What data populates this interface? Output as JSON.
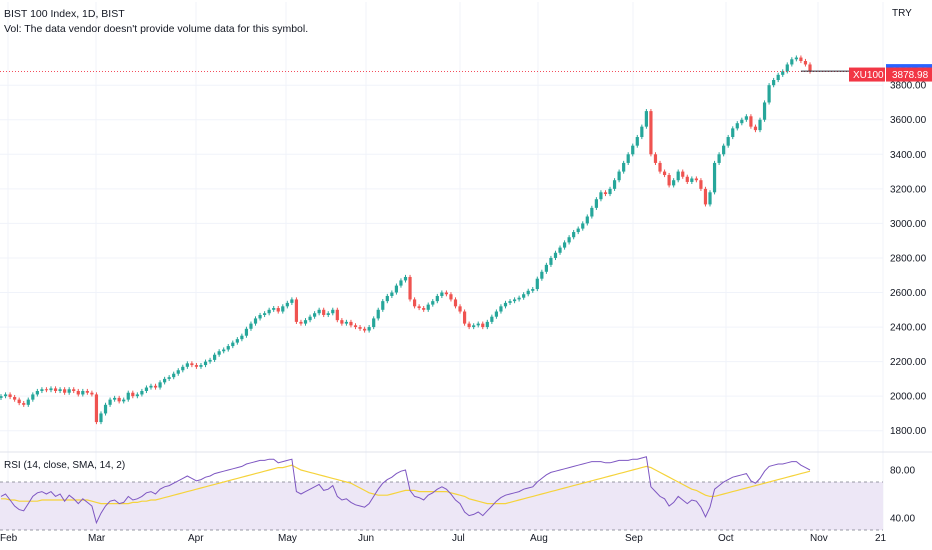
{
  "header": {
    "title": "BIST 100 Index, 1D, BIST",
    "volume_note": "Vol: The data vendor doesn't provide volume data for this symbol."
  },
  "currency": "TRY",
  "colors": {
    "up": "#26a69a",
    "down": "#ef5350",
    "rsi_line": "#7e57c2",
    "rsi_ma": "#f5d33b",
    "rsi_band": "#ede7f6",
    "price_tag": "#f23645",
    "bid_tag": "#2962ff",
    "axis_text": "#131722",
    "grid": "#f0f3fa"
  },
  "price_tags": {
    "current": "3881.53",
    "symbol": "XU100",
    "last": "3878.98"
  },
  "chart_data": [
    {
      "type": "candlestick",
      "title": "BIST 100 Index, 1D, BIST",
      "ylim": [
        1700,
        4050
      ],
      "y_ticks": [
        "1800.00",
        "2000.00",
        "2200.00",
        "2400.00",
        "2600.00",
        "2800.00",
        "3000.00",
        "3200.00",
        "3400.00",
        "3600.00",
        "3800.00"
      ],
      "x_ticks": [
        "Feb",
        "Mar",
        "Apr",
        "May",
        "Jun",
        "Jul",
        "Aug",
        "Sep",
        "Oct",
        "Nov",
        "21"
      ],
      "series": [
        {
          "name": "close",
          "values": [
            2000,
            2010,
            1995,
            1980,
            1960,
            1950,
            1980,
            2010,
            2030,
            2040,
            2035,
            2045,
            2030,
            2040,
            2020,
            2040,
            2030,
            2010,
            2030,
            2020,
            2010,
            1850,
            1900,
            1950,
            1980,
            1990,
            1970,
            1980,
            2020,
            2000,
            2010,
            2030,
            2050,
            2060,
            2050,
            2080,
            2100,
            2110,
            2130,
            2150,
            2170,
            2190,
            2180,
            2170,
            2180,
            2200,
            2210,
            2240,
            2260,
            2270,
            2290,
            2310,
            2330,
            2350,
            2390,
            2420,
            2450,
            2470,
            2480,
            2500,
            2510,
            2490,
            2520,
            2540,
            2560,
            2430,
            2420,
            2440,
            2460,
            2480,
            2500,
            2470,
            2480,
            2500,
            2440,
            2420,
            2430,
            2410,
            2400,
            2390,
            2380,
            2400,
            2450,
            2500,
            2550,
            2580,
            2600,
            2640,
            2670,
            2690,
            2560,
            2520,
            2510,
            2500,
            2530,
            2550,
            2580,
            2600,
            2590,
            2560,
            2520,
            2490,
            2420,
            2400,
            2410,
            2420,
            2400,
            2430,
            2460,
            2490,
            2520,
            2540,
            2550,
            2560,
            2570,
            2590,
            2610,
            2620,
            2680,
            2720,
            2760,
            2800,
            2830,
            2860,
            2890,
            2920,
            2950,
            2970,
            3000,
            3040,
            3090,
            3140,
            3180,
            3170,
            3200,
            3250,
            3300,
            3350,
            3400,
            3450,
            3500,
            3560,
            3650,
            3400,
            3350,
            3300,
            3280,
            3220,
            3250,
            3300,
            3270,
            3240,
            3260,
            3250,
            3200,
            3110,
            3180,
            3350,
            3400,
            3450,
            3500,
            3550,
            3580,
            3600,
            3620,
            3560,
            3540,
            3600,
            3700,
            3800,
            3830,
            3860,
            3880,
            3920,
            3950,
            3960,
            3940,
            3920,
            3879
          ]
        },
        {
          "name": "open",
          "values": [
            1990,
            2000,
            2010,
            1995,
            1980,
            1960,
            1950,
            1980,
            2010,
            2030,
            2040,
            2035,
            2045,
            2030,
            2040,
            2020,
            2040,
            2030,
            2010,
            2030,
            2020,
            2010,
            1850,
            1900,
            1950,
            1980,
            1990,
            1970,
            1980,
            2020,
            2000,
            2010,
            2030,
            2050,
            2060,
            2050,
            2080,
            2100,
            2110,
            2130,
            2150,
            2170,
            2190,
            2180,
            2170,
            2180,
            2200,
            2210,
            2240,
            2260,
            2270,
            2290,
            2310,
            2330,
            2350,
            2390,
            2420,
            2450,
            2470,
            2480,
            2500,
            2510,
            2490,
            2520,
            2540,
            2560,
            2430,
            2420,
            2440,
            2460,
            2480,
            2500,
            2470,
            2480,
            2500,
            2440,
            2420,
            2430,
            2410,
            2400,
            2390,
            2380,
            2400,
            2450,
            2500,
            2550,
            2580,
            2600,
            2640,
            2670,
            2690,
            2560,
            2520,
            2510,
            2500,
            2530,
            2550,
            2580,
            2600,
            2590,
            2560,
            2520,
            2490,
            2420,
            2400,
            2410,
            2420,
            2400,
            2430,
            2460,
            2490,
            2520,
            2540,
            2550,
            2560,
            2570,
            2590,
            2610,
            2620,
            2680,
            2720,
            2760,
            2800,
            2830,
            2860,
            2890,
            2920,
            2950,
            2970,
            3000,
            3040,
            3090,
            3140,
            3180,
            3170,
            3200,
            3250,
            3300,
            3350,
            3400,
            3450,
            3500,
            3560,
            3650,
            3400,
            3350,
            3300,
            3280,
            3220,
            3250,
            3300,
            3270,
            3240,
            3260,
            3250,
            3200,
            3110,
            3180,
            3350,
            3400,
            3450,
            3500,
            3550,
            3580,
            3600,
            3620,
            3560,
            3540,
            3600,
            3700,
            3800,
            3830,
            3860,
            3880,
            3920,
            3950,
            3960,
            3940,
            3920
          ]
        }
      ]
    },
    {
      "type": "line",
      "title": "RSI (14, close, SMA, 14, 2)",
      "ylim": [
        30,
        90
      ],
      "y_ticks": [
        "80.00",
        "40.00"
      ],
      "bands": [
        30,
        70
      ],
      "series": [
        {
          "name": "RSI",
          "values": [
            58,
            60,
            55,
            50,
            47,
            46,
            52,
            58,
            61,
            62,
            60,
            62,
            58,
            60,
            54,
            59,
            56,
            52,
            56,
            53,
            50,
            36,
            44,
            50,
            54,
            55,
            52,
            53,
            58,
            55,
            56,
            58,
            61,
            62,
            60,
            64,
            66,
            67,
            69,
            71,
            73,
            75,
            73,
            71,
            72,
            74,
            75,
            77,
            78,
            79,
            80,
            81,
            82,
            83,
            85,
            86,
            87,
            88,
            88,
            89,
            89,
            86,
            87,
            88,
            89,
            62,
            60,
            62,
            64,
            66,
            68,
            63,
            64,
            67,
            58,
            55,
            56,
            53,
            51,
            50,
            49,
            52,
            58,
            64,
            69,
            72,
            74,
            77,
            79,
            80,
            63,
            58,
            57,
            55,
            59,
            61,
            64,
            66,
            64,
            60,
            55,
            52,
            45,
            42,
            43,
            45,
            42,
            46,
            50,
            54,
            57,
            59,
            60,
            61,
            62,
            64,
            65,
            66,
            70,
            73,
            76,
            78,
            79,
            80,
            81,
            82,
            83,
            84,
            85,
            86,
            87,
            87,
            87,
            86,
            86,
            87,
            88,
            88,
            88,
            89,
            89,
            90,
            91,
            66,
            62,
            58,
            56,
            50,
            53,
            58,
            55,
            52,
            55,
            54,
            49,
            41,
            49,
            64,
            67,
            70,
            72,
            74,
            75,
            76,
            77,
            71,
            69,
            73,
            79,
            83,
            84,
            85,
            85,
            86,
            87,
            87,
            84,
            82,
            80
          ]
        },
        {
          "name": "SMA",
          "values": [
            56,
            56,
            55,
            55,
            54,
            54,
            54,
            54,
            54,
            55,
            55,
            55,
            55,
            55,
            55,
            55,
            55,
            55,
            55,
            55,
            54,
            53,
            52,
            52,
            52,
            52,
            52,
            52,
            52,
            53,
            53,
            54,
            54,
            55,
            55,
            56,
            57,
            58,
            59,
            60,
            61,
            62,
            63,
            64,
            65,
            66,
            67,
            68,
            69,
            70,
            71,
            72,
            73,
            74,
            75,
            76,
            77,
            78,
            79,
            80,
            81,
            82,
            82,
            83,
            84,
            82,
            80,
            79,
            78,
            77,
            76,
            75,
            74,
            73,
            72,
            71,
            70,
            69,
            67,
            65,
            63,
            61,
            60,
            59,
            59,
            59,
            60,
            61,
            62,
            63,
            63,
            63,
            62,
            62,
            62,
            62,
            62,
            62,
            62,
            61,
            60,
            59,
            58,
            56,
            55,
            54,
            53,
            52,
            52,
            52,
            52,
            52,
            53,
            54,
            55,
            56,
            57,
            58,
            59,
            60,
            61,
            62,
            63,
            64,
            65,
            66,
            67,
            68,
            69,
            70,
            71,
            72,
            73,
            74,
            75,
            76,
            77,
            78,
            79,
            80,
            81,
            82,
            83,
            82,
            80,
            78,
            76,
            74,
            72,
            70,
            68,
            66,
            64,
            63,
            61,
            59,
            58,
            58,
            59,
            60,
            61,
            62,
            63,
            64,
            65,
            66,
            67,
            68,
            69,
            70,
            71,
            72,
            73,
            74,
            75,
            76,
            77,
            78,
            79
          ]
        }
      ]
    }
  ]
}
